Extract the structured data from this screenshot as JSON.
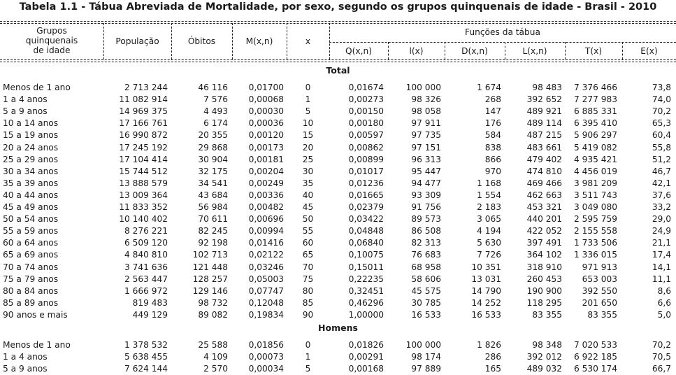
{
  "title": "Tabela 1.1 - Tábua Abreviada de Mortalidade, por sexo, segundo os grupos quinquenais de idade - Brasil - 2010",
  "headers": {
    "group": [
      "Grupos",
      "quinquenais",
      "de idade"
    ],
    "populacao": "População",
    "obitos": "Óbitos",
    "mxn": "M(x,n)",
    "x": "x",
    "funcoes": "Funções da tábua",
    "qxn": "Q(x,n)",
    "lx": "l(x)",
    "dxn": "D(x,n)",
    "Lxn": "L(x,n)",
    "Tx": "T(x)",
    "Ex": "E(x)"
  },
  "sections": [
    {
      "name": "Total",
      "rows": [
        [
          "Menos de 1 ano",
          "2 713 244",
          "46 116",
          "0,01700",
          "0",
          "0,01674",
          "100 000",
          "1 674",
          "98 483",
          "7 376 466",
          "73,8"
        ],
        [
          "1 a 4 anos",
          "11 082 914",
          "7 576",
          "0,00068",
          "1",
          "0,00273",
          "98 326",
          "268",
          "392 652",
          "7 277 983",
          "74,0"
        ],
        [
          "5 a 9 anos",
          "14 969 375",
          "4 493",
          "0,00030",
          "5",
          "0,00150",
          "98 058",
          "147",
          "489 921",
          "6 885 331",
          "70,2"
        ],
        [
          "10 a 14 anos",
          "17 166 761",
          "6 174",
          "0,00036",
          "10",
          "0,00180",
          "97 911",
          "176",
          "489 114",
          "6 395 410",
          "65,3"
        ],
        [
          "15 a 19 anos",
          "16 990 872",
          "20 355",
          "0,00120",
          "15",
          "0,00597",
          "97 735",
          "584",
          "487 215",
          "5 906 297",
          "60,4"
        ],
        [
          "20 a 24 anos",
          "17 245 192",
          "29 868",
          "0,00173",
          "20",
          "0,00862",
          "97 151",
          "838",
          "483 661",
          "5 419 082",
          "55,8"
        ],
        [
          "25 a 29 anos",
          "17 104 414",
          "30 904",
          "0,00181",
          "25",
          "0,00899",
          "96 313",
          "866",
          "479 402",
          "4 935 421",
          "51,2"
        ],
        [
          "30 a 34 anos",
          "15 744 512",
          "32 175",
          "0,00204",
          "30",
          "0,01017",
          "95 447",
          "970",
          "474 810",
          "4 456 019",
          "46,7"
        ],
        [
          "35 a 39 anos",
          "13 888 579",
          "34 541",
          "0,00249",
          "35",
          "0,01236",
          "94 477",
          "1 168",
          "469 466",
          "3 981 209",
          "42,1"
        ],
        [
          "40 a 44 anos",
          "13 009 364",
          "43 684",
          "0,00336",
          "40",
          "0,01665",
          "93 309",
          "1 554",
          "462 663",
          "3 511 743",
          "37,6"
        ],
        [
          "45 a 49 anos",
          "11 833 352",
          "56 984",
          "0,00482",
          "45",
          "0,02379",
          "91 756",
          "2 183",
          "453 321",
          "3 049 080",
          "33,2"
        ],
        [
          "50 a 54 anos",
          "10 140 402",
          "70 611",
          "0,00696",
          "50",
          "0,03422",
          "89 573",
          "3 065",
          "440 201",
          "2 595 759",
          "29,0"
        ],
        [
          "55 a 59 anos",
          "8 276 221",
          "82 245",
          "0,00994",
          "55",
          "0,04848",
          "86 508",
          "4 194",
          "422 052",
          "2 155 558",
          "24,9"
        ],
        [
          "60 a 64 anos",
          "6 509 120",
          "92 198",
          "0,01416",
          "60",
          "0,06840",
          "82 313",
          "5 630",
          "397 491",
          "1 733 506",
          "21,1"
        ],
        [
          "65 a 69 anos",
          "4 840 810",
          "102 713",
          "0,02122",
          "65",
          "0,10075",
          "76 683",
          "7 726",
          "364 102",
          "1 336 015",
          "17,4"
        ],
        [
          "70 a 74 anos",
          "3 741 636",
          "121 448",
          "0,03246",
          "70",
          "0,15011",
          "68 958",
          "10 351",
          "318 910",
          "971 913",
          "14,1"
        ],
        [
          "75 a 79 anos",
          "2 563 447",
          "128 257",
          "0,05003",
          "75",
          "0,22235",
          "58 606",
          "13 031",
          "260 453",
          "653 003",
          "11,1"
        ],
        [
          "80 a 84 anos",
          "1 666 972",
          "129 146",
          "0,07747",
          "80",
          "0,32451",
          "45 575",
          "14 790",
          "190 900",
          "392 550",
          "8,6"
        ],
        [
          "85 a 89 anos",
          "819 483",
          "98 732",
          "0,12048",
          "85",
          "0,46296",
          "30 785",
          "14 252",
          "118 295",
          "201 650",
          "6,6"
        ],
        [
          "90 anos e mais",
          "449 129",
          "89 082",
          "0,19834",
          "90",
          "1,00000",
          "16 533",
          "16 533",
          "83 355",
          "83 355",
          "5,0"
        ]
      ]
    },
    {
      "name": "Homens",
      "rows": [
        [
          "Menos de 1 ano",
          "1 378 532",
          "25 588",
          "0,01856",
          "0",
          "0,01826",
          "100 000",
          "1 826",
          "98 348",
          "7 020 533",
          "70,2"
        ],
        [
          "1 a 4 anos",
          "5 638 455",
          "4 109",
          "0,00073",
          "1",
          "0,00291",
          "98 174",
          "286",
          "392 012",
          "6 922 185",
          "70,5"
        ],
        [
          "5 a 9 anos",
          "7 624 144",
          "2 570",
          "0,00034",
          "5",
          "0,00168",
          "97 889",
          "165",
          "489 032",
          "6 530 174",
          "66,7"
        ]
      ]
    }
  ]
}
